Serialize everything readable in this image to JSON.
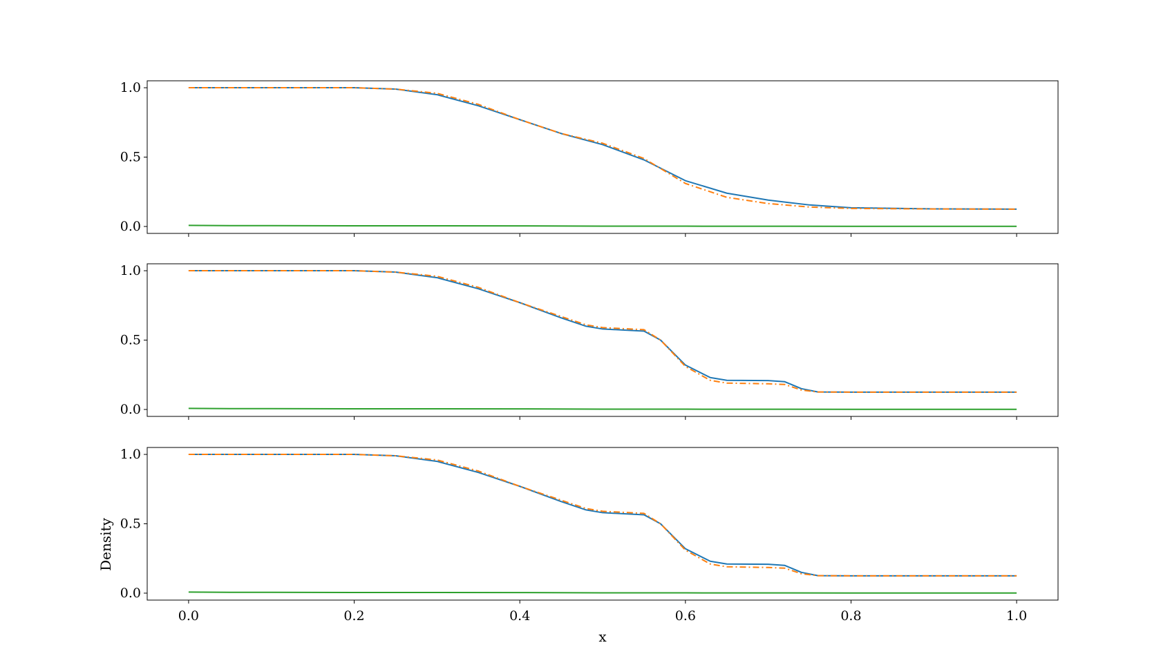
{
  "chart_data": [
    {
      "type": "line",
      "xlabel": "",
      "ylabel": "",
      "xlim": [
        -0.05,
        1.05
      ],
      "ylim": [
        -0.05,
        1.05
      ],
      "xticks": [
        0.0,
        0.2,
        0.4,
        0.6,
        0.8,
        1.0
      ],
      "yticks": [
        0.0,
        0.5,
        1.0
      ],
      "ytick_labels": [
        "0.0",
        "0.5",
        "1.0"
      ],
      "show_xtick_labels": false,
      "series": [
        {
          "color": "#1f77b4",
          "style": "solid",
          "x": [
            0.0,
            0.2,
            0.25,
            0.3,
            0.35,
            0.4,
            0.45,
            0.5,
            0.55,
            0.6,
            0.65,
            0.7,
            0.75,
            0.8,
            0.9,
            1.0
          ],
          "y": [
            1.0,
            1.0,
            0.99,
            0.95,
            0.87,
            0.77,
            0.67,
            0.59,
            0.48,
            0.33,
            0.24,
            0.19,
            0.155,
            0.135,
            0.127,
            0.125
          ]
        },
        {
          "color": "#ff7f0e",
          "style": "dashdot",
          "x": [
            0.0,
            0.2,
            0.25,
            0.3,
            0.35,
            0.4,
            0.45,
            0.5,
            0.55,
            0.6,
            0.65,
            0.7,
            0.75,
            0.8,
            0.9,
            1.0
          ],
          "y": [
            1.0,
            1.0,
            0.99,
            0.96,
            0.88,
            0.77,
            0.67,
            0.6,
            0.49,
            0.31,
            0.21,
            0.165,
            0.14,
            0.13,
            0.126,
            0.125
          ]
        },
        {
          "color": "#2ca02c",
          "style": "solid",
          "x": [
            0.0,
            0.05,
            0.1,
            0.2,
            0.4,
            0.5,
            0.6,
            0.8,
            1.0
          ],
          "y": [
            0.008,
            0.006,
            0.006,
            0.005,
            0.004,
            0.002,
            0.002,
            0.001,
            0.001
          ]
        }
      ]
    },
    {
      "type": "line",
      "xlabel": "",
      "ylabel": "",
      "xlim": [
        -0.05,
        1.05
      ],
      "ylim": [
        -0.05,
        1.05
      ],
      "xticks": [
        0.0,
        0.2,
        0.4,
        0.6,
        0.8,
        1.0
      ],
      "yticks": [
        0.0,
        0.5,
        1.0
      ],
      "ytick_labels": [
        "0.0",
        "0.5",
        "1.0"
      ],
      "show_xtick_labels": false,
      "series": [
        {
          "color": "#1f77b4",
          "style": "solid",
          "x": [
            0.0,
            0.2,
            0.25,
            0.3,
            0.35,
            0.4,
            0.45,
            0.48,
            0.5,
            0.55,
            0.57,
            0.6,
            0.63,
            0.65,
            0.7,
            0.72,
            0.74,
            0.76,
            0.8,
            0.9,
            1.0
          ],
          "y": [
            1.0,
            1.0,
            0.99,
            0.95,
            0.87,
            0.77,
            0.66,
            0.6,
            0.58,
            0.565,
            0.5,
            0.32,
            0.23,
            0.21,
            0.208,
            0.2,
            0.15,
            0.126,
            0.125,
            0.125,
            0.125
          ]
        },
        {
          "color": "#ff7f0e",
          "style": "dashdot",
          "x": [
            0.0,
            0.2,
            0.25,
            0.3,
            0.35,
            0.4,
            0.45,
            0.48,
            0.5,
            0.55,
            0.57,
            0.6,
            0.63,
            0.65,
            0.7,
            0.72,
            0.74,
            0.76,
            0.8,
            0.9,
            1.0
          ],
          "y": [
            1.0,
            1.0,
            0.99,
            0.96,
            0.88,
            0.77,
            0.67,
            0.61,
            0.59,
            0.575,
            0.5,
            0.31,
            0.21,
            0.19,
            0.185,
            0.18,
            0.14,
            0.126,
            0.125,
            0.125,
            0.125
          ]
        },
        {
          "color": "#2ca02c",
          "style": "solid",
          "x": [
            0.0,
            0.05,
            0.1,
            0.2,
            0.4,
            0.5,
            0.6,
            0.8,
            1.0
          ],
          "y": [
            0.008,
            0.006,
            0.006,
            0.005,
            0.004,
            0.002,
            0.002,
            0.001,
            0.001
          ]
        }
      ]
    },
    {
      "type": "line",
      "xlabel": "x",
      "ylabel": "Density",
      "xlim": [
        -0.05,
        1.05
      ],
      "ylim": [
        -0.05,
        1.05
      ],
      "xticks": [
        0.0,
        0.2,
        0.4,
        0.6,
        0.8,
        1.0
      ],
      "xtick_labels": [
        "0.0",
        "0.2",
        "0.4",
        "0.6",
        "0.8",
        "1.0"
      ],
      "yticks": [
        0.0,
        0.5,
        1.0
      ],
      "ytick_labels": [
        "0.0",
        "0.5",
        "1.0"
      ],
      "show_xtick_labels": true,
      "series": [
        {
          "color": "#1f77b4",
          "style": "solid",
          "x": [
            0.0,
            0.2,
            0.25,
            0.3,
            0.35,
            0.4,
            0.45,
            0.48,
            0.5,
            0.55,
            0.57,
            0.6,
            0.63,
            0.65,
            0.7,
            0.72,
            0.74,
            0.76,
            0.8,
            0.9,
            1.0
          ],
          "y": [
            1.0,
            1.0,
            0.99,
            0.95,
            0.87,
            0.77,
            0.66,
            0.6,
            0.58,
            0.565,
            0.5,
            0.32,
            0.23,
            0.21,
            0.208,
            0.2,
            0.15,
            0.126,
            0.125,
            0.125,
            0.125
          ]
        },
        {
          "color": "#ff7f0e",
          "style": "dashdot",
          "x": [
            0.0,
            0.2,
            0.25,
            0.3,
            0.35,
            0.4,
            0.45,
            0.48,
            0.5,
            0.55,
            0.57,
            0.6,
            0.63,
            0.65,
            0.7,
            0.72,
            0.74,
            0.76,
            0.8,
            0.9,
            1.0
          ],
          "y": [
            1.0,
            1.0,
            0.99,
            0.96,
            0.88,
            0.77,
            0.67,
            0.61,
            0.59,
            0.575,
            0.5,
            0.31,
            0.21,
            0.19,
            0.185,
            0.18,
            0.14,
            0.126,
            0.125,
            0.125,
            0.125
          ]
        },
        {
          "color": "#2ca02c",
          "style": "solid",
          "x": [
            0.0,
            0.05,
            0.1,
            0.2,
            0.4,
            0.5,
            0.6,
            0.8,
            1.0
          ],
          "y": [
            0.008,
            0.006,
            0.006,
            0.005,
            0.004,
            0.002,
            0.002,
            0.001,
            0.001
          ]
        }
      ]
    }
  ]
}
